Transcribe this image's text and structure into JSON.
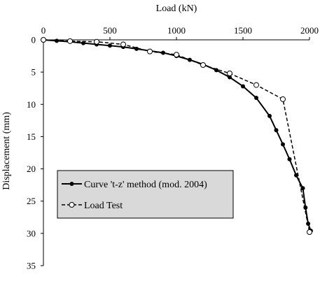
{
  "chart_data": {
    "type": "line",
    "xlabel": "Load (kN)",
    "ylabel": "Displacement (mm)",
    "xlim": [
      0,
      2000
    ],
    "ylim": [
      0,
      35
    ],
    "x_axis_position": "top",
    "y_axis_inverted": true,
    "x_ticks": [
      0,
      500,
      1000,
      1500,
      2000
    ],
    "y_ticks": [
      0,
      5,
      10,
      15,
      20,
      25,
      30,
      35
    ],
    "grid": false,
    "legend_placement": "lower-left",
    "series": [
      {
        "name": "Curve 't-z' method (mod. 2004)",
        "marker": "filled-circle",
        "line": "solid",
        "color": "#000000",
        "points": [
          [
            0,
            0
          ],
          [
            100,
            0.15
          ],
          [
            200,
            0.3
          ],
          [
            300,
            0.5
          ],
          [
            400,
            0.7
          ],
          [
            500,
            0.9
          ],
          [
            600,
            1.1
          ],
          [
            700,
            1.4
          ],
          [
            800,
            1.7
          ],
          [
            900,
            2.0
          ],
          [
            1000,
            2.5
          ],
          [
            1100,
            3.1
          ],
          [
            1200,
            3.8
          ],
          [
            1300,
            4.7
          ],
          [
            1400,
            5.8
          ],
          [
            1500,
            7.2
          ],
          [
            1600,
            9.0
          ],
          [
            1700,
            11.8
          ],
          [
            1750,
            14.0
          ],
          [
            1800,
            16.2
          ],
          [
            1850,
            18.5
          ],
          [
            1900,
            21.0
          ],
          [
            1950,
            23.0
          ],
          [
            1970,
            26.0
          ],
          [
            1990,
            28.5
          ],
          [
            2010,
            29.6
          ]
        ]
      },
      {
        "name": "Load Test",
        "marker": "open-circle",
        "line": "dashed",
        "color": "#000000",
        "points": [
          [
            0,
            0
          ],
          [
            200,
            0.2
          ],
          [
            400,
            0.3
          ],
          [
            600,
            0.7
          ],
          [
            800,
            1.8
          ],
          [
            1000,
            2.3
          ],
          [
            1200,
            3.9
          ],
          [
            1400,
            5.2
          ],
          [
            1600,
            7.0
          ],
          [
            1800,
            9.2
          ],
          [
            2000,
            29.8
          ]
        ]
      }
    ]
  }
}
